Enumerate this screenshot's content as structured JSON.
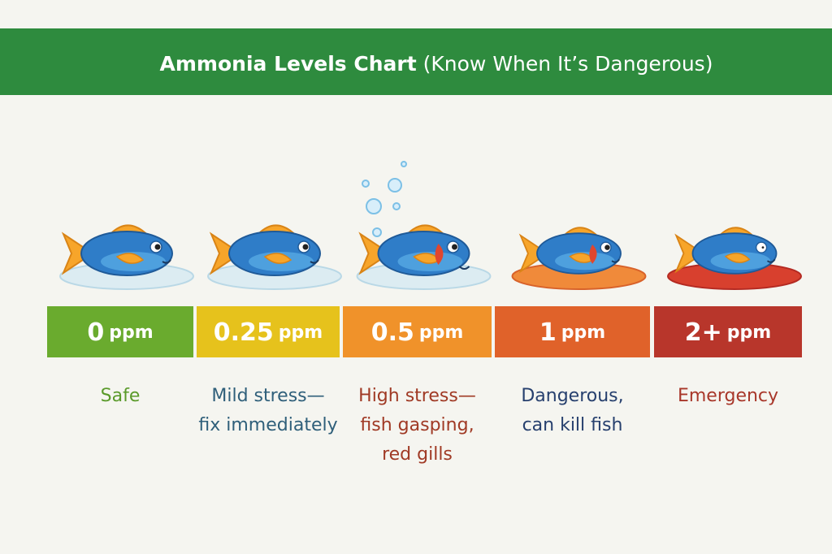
{
  "header": {
    "title_bold": "Ammonia Levels Chart",
    "title_rest": "(Know When It’s Dangerous)"
  },
  "levels": [
    {
      "value": "0",
      "unit": "ppm",
      "lines": [
        "Safe"
      ],
      "color": "#6aab2e",
      "text_color": "#5a9a2a"
    },
    {
      "value": "0.25",
      "unit": "ppm",
      "lines": [
        "Mild stress—",
        "fix immediately"
      ],
      "color": "#e6c21c",
      "text_color": "#2f5f7a"
    },
    {
      "value": "0.5",
      "unit": "ppm",
      "lines": [
        "High stress—",
        "fish gasping,",
        "red gills"
      ],
      "color": "#f0922a",
      "text_color": "#a03a25"
    },
    {
      "value": "1",
      "unit": "ppm",
      "lines": [
        "Dangerous,",
        "can kill fish"
      ],
      "color": "#e0622a",
      "text_color": "#27406e"
    },
    {
      "value": "2+",
      "unit": "ppm",
      "lines": [
        "Emergency"
      ],
      "color": "#b8362b",
      "text_color": "#a8372a"
    }
  ]
}
